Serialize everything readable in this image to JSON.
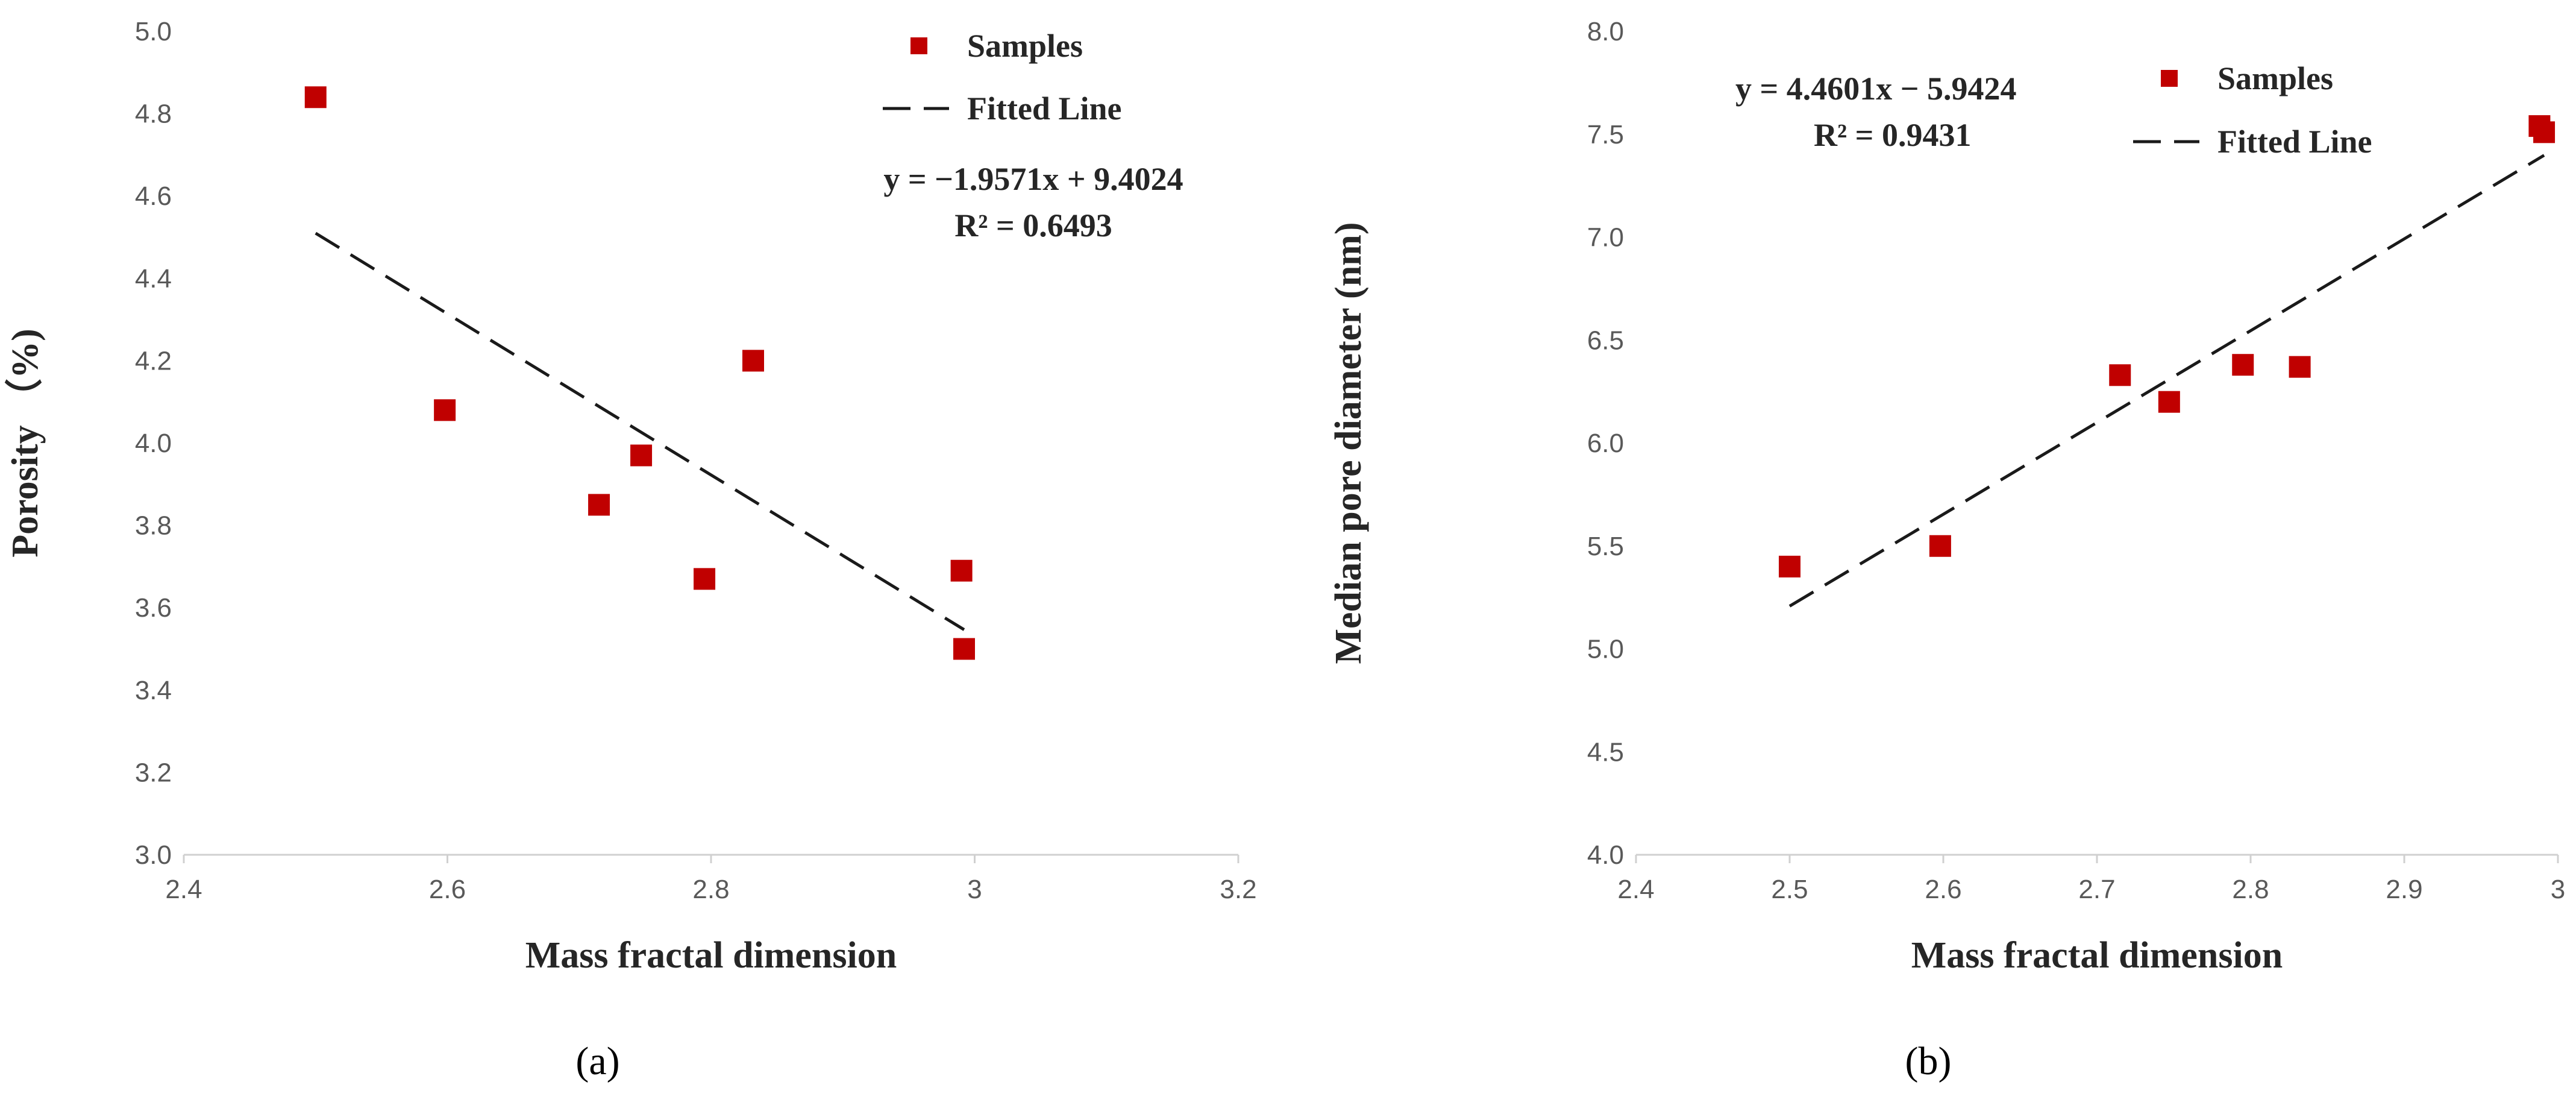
{
  "chart_data": [
    {
      "type": "scatter",
      "panel_label": "(a)",
      "xlabel": "Mass fractal dimension",
      "ylabel": "Porosity （%)",
      "xlim": [
        2.4,
        3.2
      ],
      "ylim": [
        3.0,
        5.0
      ],
      "x_ticks": [
        2.4,
        2.6,
        2.8,
        3.0,
        3.2
      ],
      "x_tick_labels": [
        "2.4",
        "2.6",
        "2.8",
        "3",
        "3.2"
      ],
      "y_ticks": [
        3.0,
        3.2,
        3.4,
        3.6,
        3.8,
        4.0,
        4.2,
        4.4,
        4.6,
        4.8,
        5.0
      ],
      "y_tick_labels": [
        "3.0",
        "3.2",
        "3.4",
        "3.6",
        "3.8",
        "4.0",
        "4.2",
        "4.4",
        "4.6",
        "4.8",
        "5.0"
      ],
      "series": [
        {
          "name": "Samples",
          "x": [
            2.5,
            2.598,
            2.715,
            2.747,
            2.795,
            2.832,
            2.99,
            2.992
          ],
          "y": [
            4.84,
            4.08,
            3.85,
            3.97,
            3.67,
            4.2,
            3.69,
            3.5
          ]
        }
      ],
      "fit": {
        "name": "Fitted Line",
        "slope": -1.9571,
        "intercept": 9.4024,
        "x_range": [
          2.5,
          2.992
        ]
      },
      "equation": "y = −1.9571x + 9.4024",
      "r2": "R² = 0.6493",
      "legend_position": "top-right",
      "grid": false,
      "color": "#C00000"
    },
    {
      "type": "scatter",
      "panel_label": "(b)",
      "xlabel": "Mass fractal dimension",
      "ylabel": "Median pore diameter (nm)",
      "xlim": [
        2.4,
        3.0
      ],
      "ylim": [
        4.0,
        8.0
      ],
      "x_ticks": [
        2.4,
        2.5,
        2.6,
        2.7,
        2.8,
        2.9,
        3.0
      ],
      "x_tick_labels": [
        "2.4",
        "2.5",
        "2.6",
        "2.7",
        "2.8",
        "2.9",
        "3"
      ],
      "y_ticks": [
        4.0,
        4.5,
        5.0,
        5.5,
        6.0,
        6.5,
        7.0,
        7.5,
        8.0
      ],
      "y_tick_labels": [
        "4.0",
        "4.5",
        "5.0",
        "5.5",
        "6.0",
        "6.5",
        "7.0",
        "7.5",
        "8.0"
      ],
      "series": [
        {
          "name": "Samples",
          "x": [
            2.5,
            2.598,
            2.715,
            2.747,
            2.795,
            2.832,
            2.988,
            2.991
          ],
          "y": [
            5.4,
            5.5,
            6.33,
            6.2,
            6.38,
            6.37,
            7.54,
            7.51
          ]
        }
      ],
      "fit": {
        "name": "Fitted Line",
        "slope": 4.4601,
        "intercept": -5.9424,
        "x_range": [
          2.5,
          2.991
        ]
      },
      "equation": "y = 4.4601x − 5.9424",
      "r2": "R² = 0.9431",
      "legend_position": "top-right",
      "grid": false,
      "color": "#C00000"
    }
  ]
}
